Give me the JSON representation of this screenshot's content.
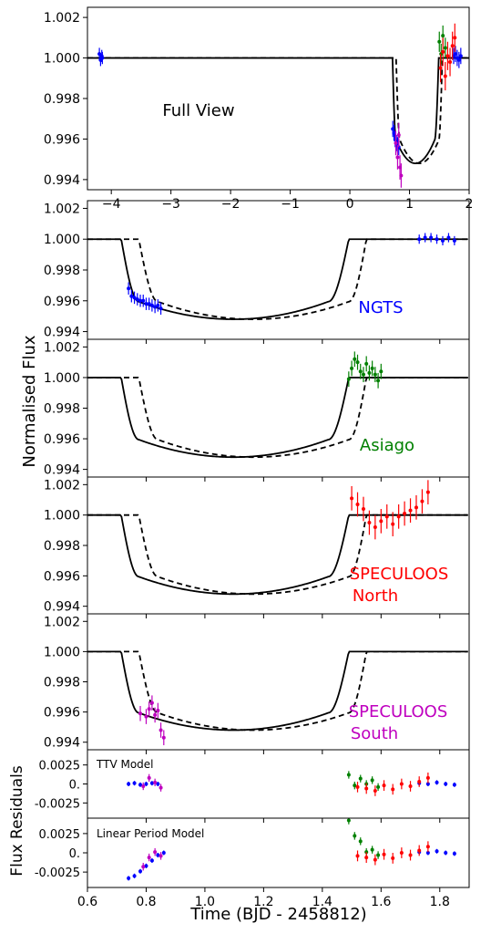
{
  "figure": {
    "ylabel_main": "Normalised Flux",
    "ylabel_residuals": "Flux Residuals",
    "xlabel": "Time  (BJD - 2458812)"
  },
  "colors": {
    "NGTS": "#0000ff",
    "Asiago": "#008000",
    "SPECULOOS North": "#ff0000",
    "SPECULOOS South": "#bf00bf",
    "model": "#000000"
  },
  "chart_data": [
    {
      "id": "full",
      "type": "line",
      "annotation": "Full View",
      "xlim": [
        -4.4,
        2.0
      ],
      "ylim": [
        0.9935,
        1.0025
      ],
      "xticks": [
        -4,
        -3,
        -2,
        -1,
        0,
        1,
        2
      ],
      "xticklabels": [
        "−4",
        "−3",
        "−2",
        "−1",
        "0",
        "1",
        "2"
      ],
      "yticks": [
        1.002,
        1.0,
        0.998,
        0.996,
        0.994
      ],
      "yticklabels": [
        "1.002",
        "1.000",
        "0.998",
        "0.996",
        "0.994"
      ],
      "series": [
        {
          "instrument": "NGTS",
          "points": [
            [
              -4.2,
              1.0002,
              0.0003
            ],
            [
              -4.18,
              0.9999,
              0.0003
            ],
            [
              -4.16,
              1.0001,
              0.0003
            ],
            [
              -4.15,
              1.0,
              0.0003
            ],
            [
              0.72,
              0.9965,
              0.0004
            ],
            [
              0.74,
              0.9963,
              0.0004
            ],
            [
              0.76,
              0.996,
              0.0004
            ],
            [
              0.78,
              0.9958,
              0.0004
            ],
            [
              0.8,
              0.9957,
              0.0004
            ],
            [
              0.82,
              0.9956,
              0.0004
            ],
            [
              1.74,
              1.0001,
              0.0004
            ],
            [
              1.77,
              1.0002,
              0.0004
            ],
            [
              1.8,
              1.0,
              0.0004
            ],
            [
              1.83,
              0.9999,
              0.0004
            ],
            [
              1.86,
              1.0001,
              0.0004
            ]
          ]
        },
        {
          "instrument": "Asiago",
          "points": [
            [
              1.5,
              1.0008,
              0.0005
            ],
            [
              1.53,
              1.0002,
              0.0005
            ],
            [
              1.56,
              1.0011,
              0.0005
            ],
            [
              1.6,
              1.0005,
              0.0005
            ]
          ]
        },
        {
          "instrument": "SPECULOOS North",
          "points": [
            [
              1.52,
              0.9995,
              0.0007
            ],
            [
              1.56,
              1.0003,
              0.0007
            ],
            [
              1.6,
              0.9991,
              0.0007
            ],
            [
              1.64,
              1.0001,
              0.0007
            ],
            [
              1.68,
              0.9998,
              0.0007
            ],
            [
              1.72,
              1.0006,
              0.0007
            ],
            [
              1.76,
              1.001,
              0.0007
            ]
          ]
        },
        {
          "instrument": "SPECULOOS South",
          "points": [
            [
              0.77,
              0.9958,
              0.0006
            ],
            [
              0.8,
              0.9951,
              0.0006
            ],
            [
              0.82,
              0.9962,
              0.0006
            ],
            [
              0.84,
              0.9946,
              0.0006
            ],
            [
              0.86,
              0.9942,
              0.0006
            ]
          ]
        }
      ]
    },
    {
      "id": "ngts",
      "type": "line",
      "annotation": "NGTS",
      "xlim": [
        0.6,
        1.9
      ],
      "ylim": [
        0.9935,
        1.0025
      ],
      "yticks": [
        1.002,
        1.0,
        0.998,
        0.996,
        0.994
      ],
      "yticklabels": [
        "1.002",
        "1.000",
        "0.998",
        "0.996",
        "0.994"
      ],
      "series": [
        {
          "instrument": "NGTS",
          "points": [
            [
              0.74,
              0.9968,
              0.0004
            ],
            [
              0.75,
              0.9963,
              0.0004
            ],
            [
              0.76,
              0.9962,
              0.0004
            ],
            [
              0.77,
              0.9961,
              0.0004
            ],
            [
              0.78,
              0.996,
              0.0004
            ],
            [
              0.79,
              0.996,
              0.0004
            ],
            [
              0.8,
              0.9958,
              0.0004
            ],
            [
              0.81,
              0.9958,
              0.0004
            ],
            [
              0.82,
              0.9957,
              0.0004
            ],
            [
              0.83,
              0.9956,
              0.0004
            ],
            [
              0.84,
              0.9957,
              0.0004
            ],
            [
              0.85,
              0.9955,
              0.0004
            ],
            [
              1.73,
              1.0,
              0.0003
            ],
            [
              1.75,
              1.0001,
              0.0003
            ],
            [
              1.77,
              1.0001,
              0.0003
            ],
            [
              1.79,
              1.0,
              0.0003
            ],
            [
              1.81,
              0.9999,
              0.0003
            ],
            [
              1.83,
              1.0001,
              0.0003
            ],
            [
              1.85,
              0.9999,
              0.0003
            ]
          ]
        }
      ]
    },
    {
      "id": "asiago",
      "type": "line",
      "annotation": "Asiago",
      "xlim": [
        0.6,
        1.9
      ],
      "ylim": [
        0.9935,
        1.0025
      ],
      "yticks": [
        1.002,
        1.0,
        0.998,
        0.996,
        0.994
      ],
      "yticklabels": [
        "1.002",
        "1.000",
        "0.998",
        "0.996",
        "0.994"
      ],
      "series": [
        {
          "instrument": "Asiago",
          "points": [
            [
              1.49,
              0.9999,
              0.0005
            ],
            [
              1.5,
              1.0006,
              0.0005
            ],
            [
              1.51,
              1.0012,
              0.0005
            ],
            [
              1.52,
              1.001,
              0.0005
            ],
            [
              1.53,
              1.0004,
              0.0005
            ],
            [
              1.54,
              1.0002,
              0.0005
            ],
            [
              1.55,
              1.0009,
              0.0005
            ],
            [
              1.56,
              1.0003,
              0.0005
            ],
            [
              1.57,
              1.0006,
              0.0005
            ],
            [
              1.58,
              1.0002,
              0.0005
            ],
            [
              1.59,
              0.9998,
              0.0005
            ],
            [
              1.6,
              1.0004,
              0.0005
            ]
          ]
        }
      ]
    },
    {
      "id": "north",
      "type": "line",
      "annotation": "SPECULOOS North",
      "xlim": [
        0.6,
        1.9
      ],
      "ylim": [
        0.9935,
        1.0025
      ],
      "yticks": [
        1.002,
        1.0,
        0.998,
        0.996,
        0.994
      ],
      "yticklabels": [
        "1.002",
        "1.000",
        "0.998",
        "0.996",
        "0.994"
      ],
      "series": [
        {
          "instrument": "SPECULOOS North",
          "points": [
            [
              1.5,
              1.0011,
              0.0008
            ],
            [
              1.52,
              1.0007,
              0.0008
            ],
            [
              1.54,
              1.0004,
              0.0008
            ],
            [
              1.56,
              0.9995,
              0.0008
            ],
            [
              1.58,
              0.9992,
              0.0008
            ],
            [
              1.6,
              0.9996,
              0.0008
            ],
            [
              1.62,
              0.9999,
              0.0008
            ],
            [
              1.64,
              0.9994,
              0.0008
            ],
            [
              1.66,
              0.9999,
              0.0008
            ],
            [
              1.68,
              1.0001,
              0.0008
            ],
            [
              1.7,
              1.0003,
              0.0008
            ],
            [
              1.72,
              1.0005,
              0.0008
            ],
            [
              1.74,
              1.0009,
              0.0008
            ],
            [
              1.76,
              1.0015,
              0.0008
            ]
          ]
        }
      ]
    },
    {
      "id": "south",
      "type": "line",
      "annotation": "SPECULOOS South",
      "xlim": [
        0.6,
        1.9
      ],
      "ylim": [
        0.9935,
        1.0025
      ],
      "yticks": [
        1.002,
        1.0,
        0.998,
        0.996,
        0.994
      ],
      "yticklabels": [
        "1.002",
        "1.000",
        "0.998",
        "0.996",
        "0.994"
      ],
      "series": [
        {
          "instrument": "SPECULOOS South",
          "points": [
            [
              0.78,
              0.9959,
              0.0005
            ],
            [
              0.8,
              0.9957,
              0.0005
            ],
            [
              0.81,
              0.9962,
              0.0005
            ],
            [
              0.82,
              0.9966,
              0.0005
            ],
            [
              0.83,
              0.9958,
              0.0005
            ],
            [
              0.84,
              0.9961,
              0.0005
            ],
            [
              0.85,
              0.9948,
              0.0005
            ],
            [
              0.86,
              0.9943,
              0.0005
            ]
          ]
        }
      ]
    },
    {
      "id": "ttv",
      "type": "scatter",
      "annotation": "TTV Model",
      "xlim": [
        0.6,
        1.9
      ],
      "ylim": [
        -0.0045,
        0.0045
      ],
      "yticks": [
        0.0025,
        0.0,
        -0.0025
      ],
      "yticklabels": [
        "0.0025",
        "0.",
        "-0.0025"
      ],
      "series": [
        {
          "instrument": "NGTS",
          "points": [
            [
              0.74,
              0.0,
              0.0003
            ],
            [
              0.76,
              0.0001,
              0.0003
            ],
            [
              0.78,
              -0.0001,
              0.0003
            ],
            [
              0.8,
              0.0,
              0.0003
            ],
            [
              0.82,
              0.0001,
              0.0003
            ],
            [
              0.84,
              0.0,
              0.0003
            ],
            [
              1.73,
              0.0001,
              0.0003
            ],
            [
              1.76,
              0.0,
              0.0003
            ],
            [
              1.79,
              0.0002,
              0.0003
            ],
            [
              1.82,
              0.0,
              0.0003
            ],
            [
              1.85,
              -0.0001,
              0.0003
            ]
          ]
        },
        {
          "instrument": "SPECULOOS South",
          "points": [
            [
              0.79,
              -0.0003,
              0.0005
            ],
            [
              0.81,
              0.0008,
              0.0005
            ],
            [
              0.83,
              0.0002,
              0.0005
            ],
            [
              0.85,
              -0.0005,
              0.0005
            ]
          ]
        },
        {
          "instrument": "Asiago",
          "points": [
            [
              1.49,
              0.0012,
              0.0005
            ],
            [
              1.51,
              -0.0002,
              0.0005
            ],
            [
              1.53,
              0.0007,
              0.0005
            ],
            [
              1.55,
              0.0,
              0.0005
            ],
            [
              1.57,
              0.0005,
              0.0005
            ],
            [
              1.59,
              -0.0004,
              0.0005
            ]
          ]
        },
        {
          "instrument": "SPECULOOS North",
          "points": [
            [
              1.52,
              -0.0004,
              0.0007
            ],
            [
              1.55,
              -0.0006,
              0.0007
            ],
            [
              1.58,
              -0.0009,
              0.0007
            ],
            [
              1.61,
              -0.0002,
              0.0007
            ],
            [
              1.64,
              -0.0007,
              0.0007
            ],
            [
              1.67,
              0.0,
              0.0007
            ],
            [
              1.7,
              -0.0003,
              0.0007
            ],
            [
              1.73,
              0.0003,
              0.0007
            ],
            [
              1.76,
              0.0008,
              0.0007
            ]
          ]
        }
      ]
    },
    {
      "id": "linear",
      "type": "scatter",
      "annotation": "Linear Period Model",
      "xlim": [
        0.6,
        1.9
      ],
      "ylim": [
        -0.0045,
        0.0045
      ],
      "xticks": [
        0.6,
        0.8,
        1.0,
        1.2,
        1.4,
        1.6,
        1.8
      ],
      "xticklabels": [
        "0.6",
        "0.8",
        "1.0",
        "1.2",
        "1.4",
        "1.6",
        "1.8"
      ],
      "yticks": [
        0.0025,
        0.0,
        -0.0025
      ],
      "yticklabels": [
        "0.0025",
        "0.",
        "-0.0025"
      ],
      "series": [
        {
          "instrument": "NGTS",
          "points": [
            [
              0.74,
              -0.0033,
              0.0003
            ],
            [
              0.76,
              -0.003,
              0.0003
            ],
            [
              0.78,
              -0.0024,
              0.0003
            ],
            [
              0.8,
              -0.0017,
              0.0003
            ],
            [
              0.82,
              -0.001,
              0.0003
            ],
            [
              0.84,
              -0.0003,
              0.0003
            ],
            [
              0.86,
              0.0,
              0.0003
            ],
            [
              1.73,
              0.0001,
              0.0003
            ],
            [
              1.76,
              0.0,
              0.0003
            ],
            [
              1.79,
              0.0002,
              0.0003
            ],
            [
              1.82,
              0.0,
              0.0003
            ],
            [
              1.85,
              -0.0001,
              0.0003
            ]
          ]
        },
        {
          "instrument": "SPECULOOS South",
          "points": [
            [
              0.79,
              -0.0018,
              0.0005
            ],
            [
              0.81,
              -0.0006,
              0.0005
            ],
            [
              0.83,
              0.0001,
              0.0005
            ],
            [
              0.85,
              -0.0004,
              0.0005
            ]
          ]
        },
        {
          "instrument": "Asiago",
          "points": [
            [
              1.49,
              0.0042,
              0.0005
            ],
            [
              1.51,
              0.0022,
              0.0005
            ],
            [
              1.53,
              0.0015,
              0.0005
            ],
            [
              1.55,
              0.0001,
              0.0005
            ],
            [
              1.57,
              0.0004,
              0.0005
            ],
            [
              1.59,
              -0.0003,
              0.0005
            ]
          ]
        },
        {
          "instrument": "SPECULOOS North",
          "points": [
            [
              1.52,
              -0.0004,
              0.0007
            ],
            [
              1.55,
              -0.0006,
              0.0007
            ],
            [
              1.58,
              -0.0009,
              0.0007
            ],
            [
              1.61,
              -0.0002,
              0.0007
            ],
            [
              1.64,
              -0.0007,
              0.0007
            ],
            [
              1.67,
              0.0,
              0.0007
            ],
            [
              1.7,
              -0.0003,
              0.0007
            ],
            [
              1.73,
              0.0003,
              0.0007
            ],
            [
              1.76,
              0.0008,
              0.0007
            ]
          ]
        }
      ]
    }
  ]
}
